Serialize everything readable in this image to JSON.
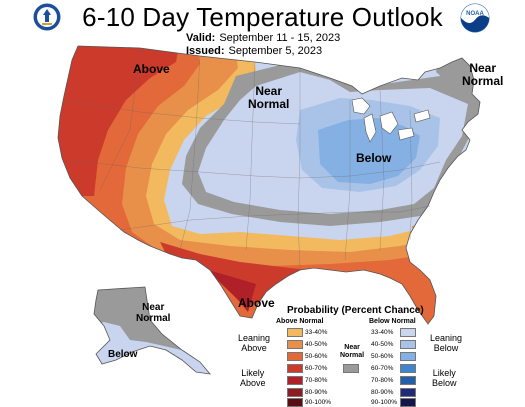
{
  "header": {
    "title": "6-10 Day Temperature Outlook",
    "valid_label": "Valid:",
    "valid_value": "September 11 - 15, 2023",
    "issued_label": "Issued:",
    "issued_value": "September 5, 2023"
  },
  "logos": {
    "left_icon": "doc-seal-icon",
    "right_icon": "noaa-logo-icon",
    "right_text": "NOAA"
  },
  "map_labels": {
    "above_nw": "Above",
    "near_normal_north": [
      "Near",
      "Normal"
    ],
    "near_normal_ne": [
      "Near",
      "Normal"
    ],
    "below_greatlakes": "Below",
    "above_tx": "Above",
    "near_normal_ak": [
      "Near",
      "Normal"
    ],
    "below_ak": "Below"
  },
  "colors": {
    "above_33_40": "#F2B95F",
    "above_40_50": "#E8904A",
    "above_50_60": "#E3683A",
    "above_60_70": "#CC3A2C",
    "above_70_80": "#B02028",
    "above_80_90": "#8C1C22",
    "above_90_100": "#5A0E14",
    "below_33_40": "#CAD6EE",
    "below_40_50": "#A9C3E8",
    "below_50_60": "#84B0E3",
    "below_60_70": "#3F86CD",
    "below_70_80": "#2460A8",
    "below_80_90": "#212A78",
    "below_90_100": "#15154A",
    "near_normal": "#9A9A9A"
  },
  "legend": {
    "title": "Probability (Percent Chance)",
    "above_header": "Above Normal",
    "below_header": "Below Normal",
    "near_normal_label": [
      "Near",
      "Normal"
    ],
    "leaning_above": [
      "Leaning",
      "Above"
    ],
    "likely_above": [
      "Likely",
      "Above"
    ],
    "leaning_below": [
      "Leaning",
      "Below"
    ],
    "likely_below": [
      "Likely",
      "Below"
    ],
    "ranges": [
      "33-40%",
      "40-50%",
      "50-60%",
      "60-70%",
      "70-80%",
      "80-90%",
      "90-100%"
    ]
  }
}
